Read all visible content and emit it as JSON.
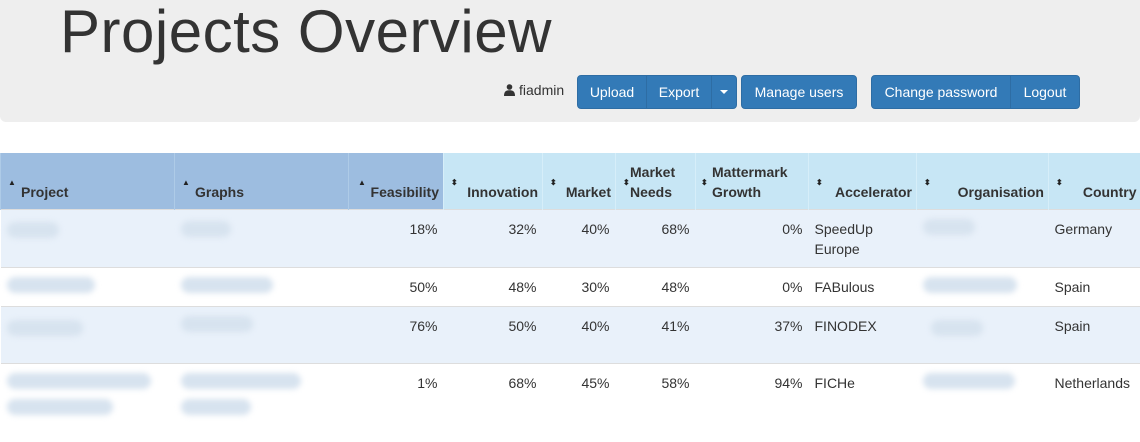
{
  "header": {
    "title": "Projects Overview",
    "username": "fiadmin",
    "buttons": {
      "upload": "Upload",
      "export": "Export",
      "manage_users": "Manage users",
      "change_password": "Change password",
      "logout": "Logout"
    }
  },
  "table": {
    "columns": [
      "Project",
      "Graphs",
      "Feasibility",
      "Innovation",
      "Market",
      "Market Needs",
      "Mattermark Growth",
      "Accelerator",
      "Organisation",
      "Country"
    ],
    "sorted_column": "Feasibility",
    "rows": [
      {
        "feasibility": "18%",
        "innovation": "32%",
        "market": "40%",
        "market_needs": "68%",
        "mattermark_growth": "0%",
        "accelerator": "SpeedUp Europe",
        "country": "Germany"
      },
      {
        "feasibility": "50%",
        "innovation": "48%",
        "market": "30%",
        "market_needs": "48%",
        "mattermark_growth": "0%",
        "accelerator": "FABulous",
        "country": "Spain"
      },
      {
        "feasibility": "76%",
        "innovation": "50%",
        "market": "40%",
        "market_needs": "41%",
        "mattermark_growth": "37%",
        "accelerator": "FINODEX",
        "country": "Spain"
      },
      {
        "feasibility": "1%",
        "innovation": "68%",
        "market": "45%",
        "market_needs": "58%",
        "mattermark_growth": "94%",
        "accelerator": "FICHe",
        "country": "Netherlands"
      }
    ]
  },
  "colors": {
    "primary_button": "#337ab7",
    "header_bg": "#c7e6f5",
    "sorted_header_bg": "#9dbde0",
    "row_stripe": "#e9f1fa"
  }
}
